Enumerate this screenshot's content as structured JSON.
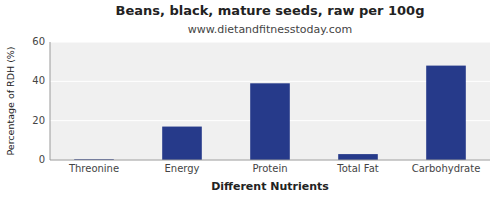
{
  "chart_data": {
    "type": "bar",
    "title": "Beans, black, mature seeds, raw per 100g",
    "subtitle": "www.dietandfitnesstoday.com",
    "xlabel": "Different Nutrients",
    "ylabel": "Percentage of RDH (%)",
    "categories": [
      "Threonine",
      "Energy",
      "Protein",
      "Total Fat",
      "Carbohydrate"
    ],
    "values": [
      0.4,
      17,
      39,
      3,
      48
    ],
    "color": "#263a8a",
    "ylim": [
      0,
      60
    ],
    "yticks": [
      0,
      20,
      40,
      60
    ],
    "grid": true
  }
}
